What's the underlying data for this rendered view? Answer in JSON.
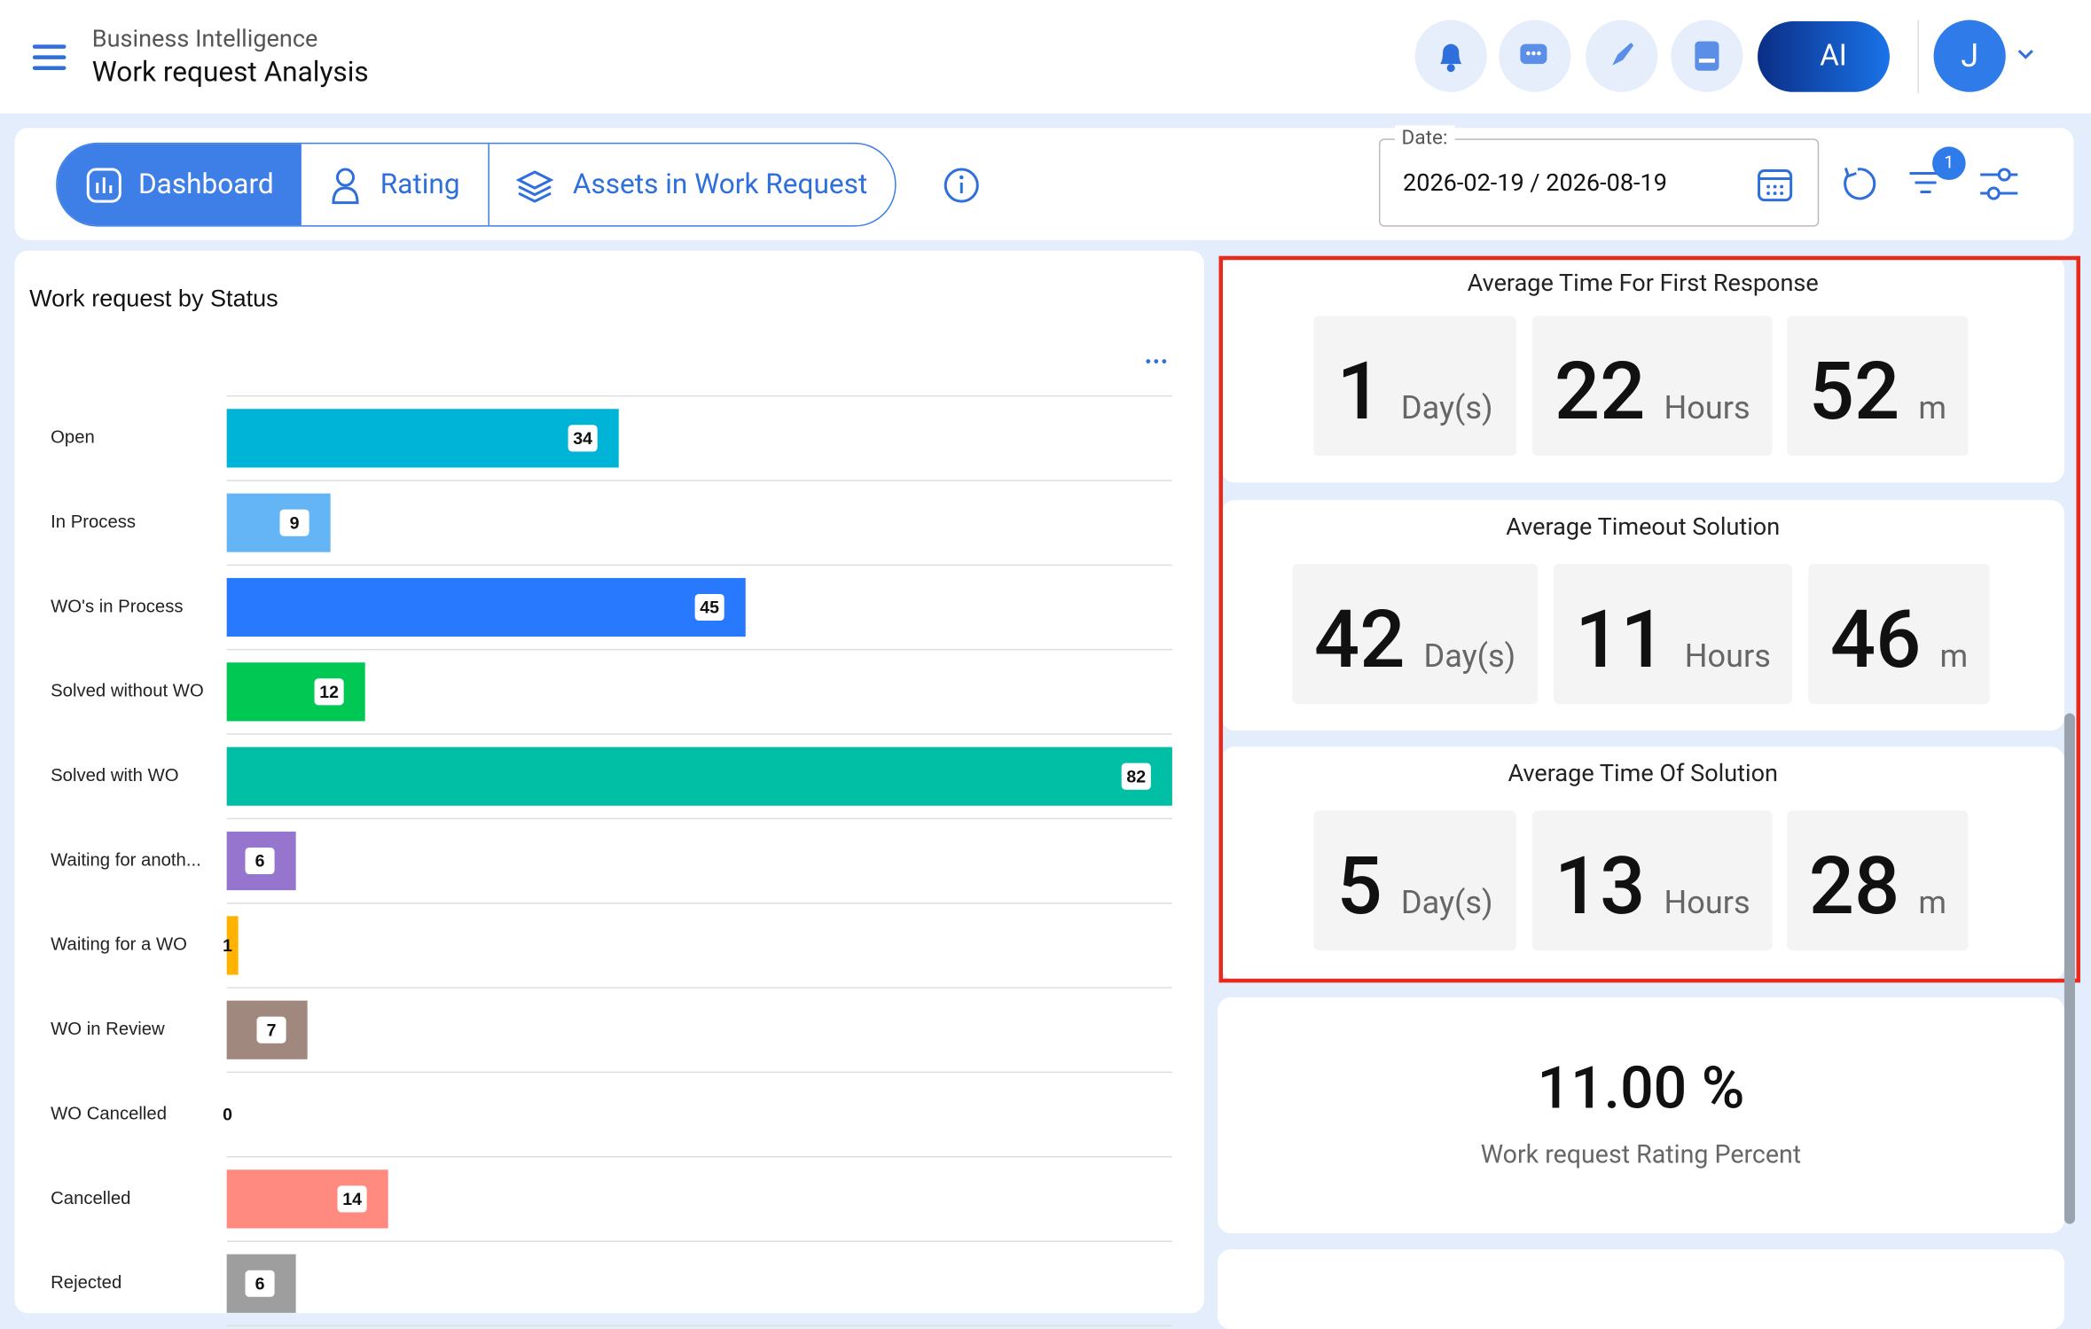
{
  "header": {
    "app": "Business Intelligence",
    "title": "Work request Analysis",
    "ai_button": "AI",
    "avatar": "J"
  },
  "tabs": [
    "Dashboard",
    "Rating",
    "Assets in Work Request"
  ],
  "filters": {
    "date_label": "Date:",
    "date_value": "2026-02-19 / 2026-08-19",
    "filter_badge": 1
  },
  "chart_data": {
    "type": "bar",
    "orientation": "horizontal",
    "title": "Work request by Status",
    "categories": [
      "Open",
      "In Process",
      "WO's in Process",
      "Solved without WO",
      "Solved with WO",
      "Waiting for anoth...",
      "Waiting for a WO",
      "WO in Review",
      "WO Cancelled",
      "Cancelled",
      "Rejected"
    ],
    "values": [
      34,
      9,
      45,
      12,
      82,
      6,
      1,
      7,
      0,
      14,
      6
    ],
    "colors": [
      "#00b4d8",
      "#64b5f6",
      "#2979ff",
      "#00c853",
      "#00bfa5",
      "#9575cd",
      "#ffb300",
      "#a1887f",
      "#cccccc",
      "#ff8a80",
      "#9e9e9e"
    ]
  },
  "metrics": [
    {
      "title": "Average Time For First Response",
      "parts": [
        {
          "value": 1,
          "unit": "Day(s)"
        },
        {
          "value": 22,
          "unit": "Hours"
        },
        {
          "value": 52,
          "unit": "m"
        }
      ]
    },
    {
      "title": "Average Timeout Solution",
      "parts": [
        {
          "value": 42,
          "unit": "Day(s)"
        },
        {
          "value": 11,
          "unit": "Hours"
        },
        {
          "value": 46,
          "unit": "m"
        }
      ]
    },
    {
      "title": "Average Time Of Solution",
      "parts": [
        {
          "value": 5,
          "unit": "Day(s)"
        },
        {
          "value": 13,
          "unit": "Hours"
        },
        {
          "value": 28,
          "unit": "m"
        }
      ]
    }
  ],
  "rating": {
    "value": "11.00 %",
    "label": "Work request Rating Percent"
  }
}
